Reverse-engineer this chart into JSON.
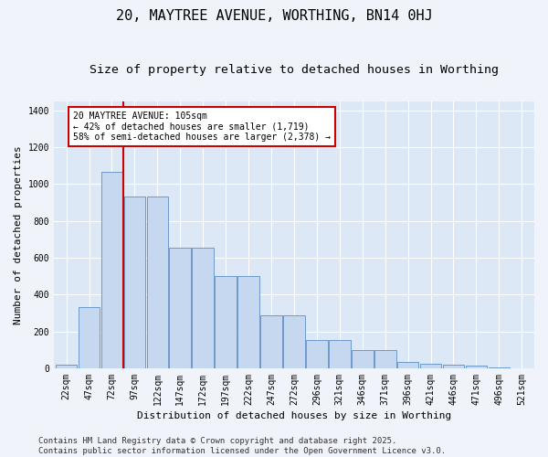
{
  "title": "20, MAYTREE AVENUE, WORTHING, BN14 0HJ",
  "subtitle": "Size of property relative to detached houses in Worthing",
  "xlabel": "Distribution of detached houses by size in Worthing",
  "ylabel": "Number of detached properties",
  "categories": [
    "22sqm",
    "47sqm",
    "72sqm",
    "97sqm",
    "122sqm",
    "147sqm",
    "172sqm",
    "197sqm",
    "222sqm",
    "247sqm",
    "272sqm",
    "296sqm",
    "321sqm",
    "346sqm",
    "371sqm",
    "396sqm",
    "421sqm",
    "446sqm",
    "471sqm",
    "496sqm",
    "521sqm"
  ],
  "values": [
    20,
    330,
    1065,
    930,
    930,
    655,
    655,
    500,
    500,
    285,
    285,
    155,
    155,
    100,
    100,
    35,
    25,
    20,
    13,
    5,
    2
  ],
  "bar_color": "#c5d8f0",
  "bar_edge_color": "#5b8ec4",
  "vline_x": 3,
  "vline_color": "#cc0000",
  "annotation_text": "20 MAYTREE AVENUE: 105sqm\n← 42% of detached houses are smaller (1,719)\n58% of semi-detached houses are larger (2,378) →",
  "annotation_box_color": "#ffffff",
  "annotation_box_edge": "#cc0000",
  "ylim": [
    0,
    1450
  ],
  "yticks": [
    0,
    200,
    400,
    600,
    800,
    1000,
    1200,
    1400
  ],
  "background_color": "#dce8f5",
  "grid_color": "#ffffff",
  "fig_bg_color": "#f0f4fa",
  "footer": "Contains HM Land Registry data © Crown copyright and database right 2025.\nContains public sector information licensed under the Open Government Licence v3.0.",
  "title_fontsize": 11,
  "subtitle_fontsize": 9.5,
  "xlabel_fontsize": 8,
  "ylabel_fontsize": 8,
  "tick_fontsize": 7,
  "footer_fontsize": 6.5,
  "annot_fontsize": 7
}
